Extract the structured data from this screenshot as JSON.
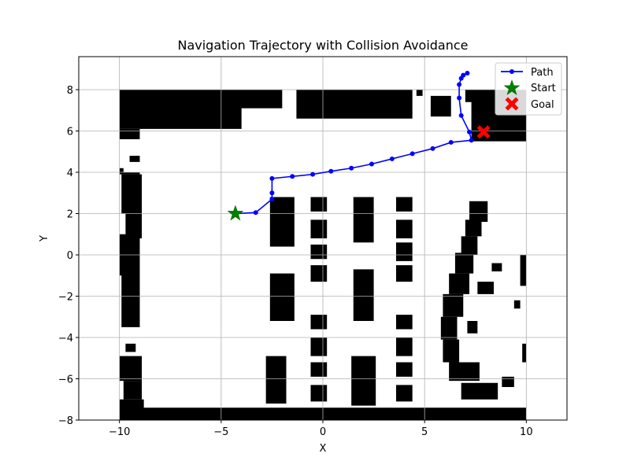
{
  "chart_data": {
    "type": "line",
    "title": "Navigation Trajectory with Collision Avoidance",
    "xlabel": "X",
    "ylabel": "Y",
    "xlim": [
      -12,
      12
    ],
    "ylim": [
      -8,
      9.6
    ],
    "xticks": [
      -10,
      -5,
      0,
      5,
      10
    ],
    "yticks": [
      -8,
      -6,
      -4,
      -2,
      0,
      2,
      4,
      6,
      8
    ],
    "grid": true,
    "legend_position": "top-right",
    "colors": {
      "path": "#0000ff",
      "start": "#008000",
      "goal": "#ff0000",
      "obstacle": "#000000",
      "grid": "#b0b0b0"
    },
    "series": [
      {
        "name": "Path",
        "x": [
          -4.3,
          -3.3,
          -2.5,
          -2.5,
          -2.5,
          -1.5,
          -0.5,
          0.4,
          1.4,
          2.4,
          3.4,
          4.4,
          5.4,
          6.3,
          7.3,
          7.2,
          6.8,
          6.7,
          6.7,
          6.8,
          6.9,
          7.1
        ],
        "y": [
          2.0,
          2.05,
          2.7,
          3.0,
          3.7,
          3.8,
          3.9,
          4.05,
          4.2,
          4.4,
          4.65,
          4.9,
          5.15,
          5.45,
          5.55,
          5.95,
          6.75,
          7.6,
          8.25,
          8.55,
          8.7,
          8.8
        ]
      }
    ],
    "markers": [
      {
        "name": "Start",
        "x": -4.3,
        "y": 2.0,
        "symbol": "star"
      },
      {
        "name": "Goal",
        "x": 7.9,
        "y": 5.95,
        "symbol": "x"
      }
    ],
    "occupancy_grid": {
      "x_range": [
        -10,
        10
      ],
      "y_range": [
        -8,
        8
      ],
      "obstacles_rect": [
        [
          -10,
          7.2,
          7.0,
          0.8
        ],
        [
          -10,
          6.1,
          6.0,
          1.1
        ],
        [
          -10,
          5.6,
          1.0,
          0.5
        ],
        [
          -4.8,
          7.1,
          2.8,
          0.9
        ],
        [
          -1.3,
          6.6,
          5.7,
          1.4
        ],
        [
          4.6,
          7.7,
          0.3,
          0.3
        ],
        [
          5.3,
          6.7,
          1.0,
          1.0
        ],
        [
          7.0,
          7.4,
          3.0,
          0.6
        ],
        [
          7.3,
          5.5,
          2.7,
          2.0
        ],
        [
          -10,
          4.0,
          0.2,
          0.2
        ],
        [
          -9.5,
          4.5,
          0.5,
          0.3
        ],
        [
          -10,
          3.9,
          1.0,
          0.1
        ],
        [
          -9.9,
          2.0,
          1.0,
          1.9
        ],
        [
          -9.7,
          0.8,
          0.8,
          1.2
        ],
        [
          -9.3,
          0.0,
          0.3,
          0.4
        ],
        [
          -10,
          -1.0,
          1.0,
          2.0
        ],
        [
          -9.9,
          -3.5,
          0.9,
          2.6
        ],
        [
          -9.7,
          -4.7,
          0.5,
          0.4
        ],
        [
          -10,
          -6.1,
          1.1,
          1.2
        ],
        [
          -9.8,
          -7.0,
          0.9,
          0.9
        ],
        [
          -10,
          -7.5,
          1.2,
          0.5
        ],
        [
          -10,
          -8.0,
          20.0,
          0.6
        ],
        [
          -2.6,
          0.4,
          1.2,
          2.4
        ],
        [
          -0.6,
          2.1,
          0.8,
          0.7
        ],
        [
          -0.6,
          0.8,
          0.8,
          0.9
        ],
        [
          -0.6,
          -0.2,
          0.8,
          0.7
        ],
        [
          -0.6,
          -1.3,
          0.8,
          0.8
        ],
        [
          1.5,
          0.6,
          1.0,
          2.2
        ],
        [
          3.6,
          2.1,
          0.8,
          0.7
        ],
        [
          3.6,
          0.8,
          0.8,
          0.9
        ],
        [
          3.6,
          -0.3,
          0.8,
          0.9
        ],
        [
          3.6,
          -1.3,
          0.8,
          0.8
        ],
        [
          -2.6,
          -3.2,
          1.2,
          2.3
        ],
        [
          1.5,
          -3.2,
          1.0,
          2.5
        ],
        [
          -0.6,
          -3.6,
          0.8,
          0.7
        ],
        [
          3.6,
          -3.6,
          0.8,
          0.7
        ],
        [
          -0.6,
          -4.9,
          0.8,
          0.9
        ],
        [
          3.6,
          -4.9,
          0.8,
          0.9
        ],
        [
          -0.6,
          -5.9,
          0.8,
          0.7
        ],
        [
          3.6,
          -5.9,
          0.8,
          0.7
        ],
        [
          -0.6,
          -7.1,
          0.8,
          0.8
        ],
        [
          3.6,
          -7.1,
          0.8,
          0.8
        ],
        [
          -2.8,
          -7.2,
          1.0,
          2.3
        ],
        [
          1.4,
          -7.3,
          1.2,
          2.4
        ],
        [
          7.2,
          1.6,
          0.9,
          1.0
        ],
        [
          7.0,
          0.9,
          0.8,
          0.8
        ],
        [
          6.8,
          0.0,
          0.8,
          0.9
        ],
        [
          6.5,
          -0.9,
          0.9,
          1.0
        ],
        [
          6.2,
          -1.9,
          1.0,
          1.0
        ],
        [
          5.9,
          -3.0,
          1.0,
          1.1
        ],
        [
          5.8,
          -4.1,
          0.8,
          1.1
        ],
        [
          5.9,
          -5.2,
          0.8,
          1.1
        ],
        [
          6.2,
          -6.1,
          1.5,
          0.9
        ],
        [
          6.8,
          -7.0,
          1.8,
          0.8
        ],
        [
          7.1,
          -3.8,
          0.5,
          0.6
        ],
        [
          7.6,
          -1.9,
          0.8,
          0.6
        ],
        [
          8.3,
          -0.8,
          0.5,
          0.4
        ],
        [
          9.7,
          -1.5,
          0.3,
          1.5
        ],
        [
          9.4,
          -2.6,
          0.3,
          0.4
        ],
        [
          9.8,
          -5.2,
          0.2,
          0.9
        ],
        [
          8.8,
          -6.4,
          0.6,
          0.5
        ]
      ]
    }
  },
  "legend": {
    "path_label": "Path",
    "start_label": "Start",
    "goal_label": "Goal"
  }
}
